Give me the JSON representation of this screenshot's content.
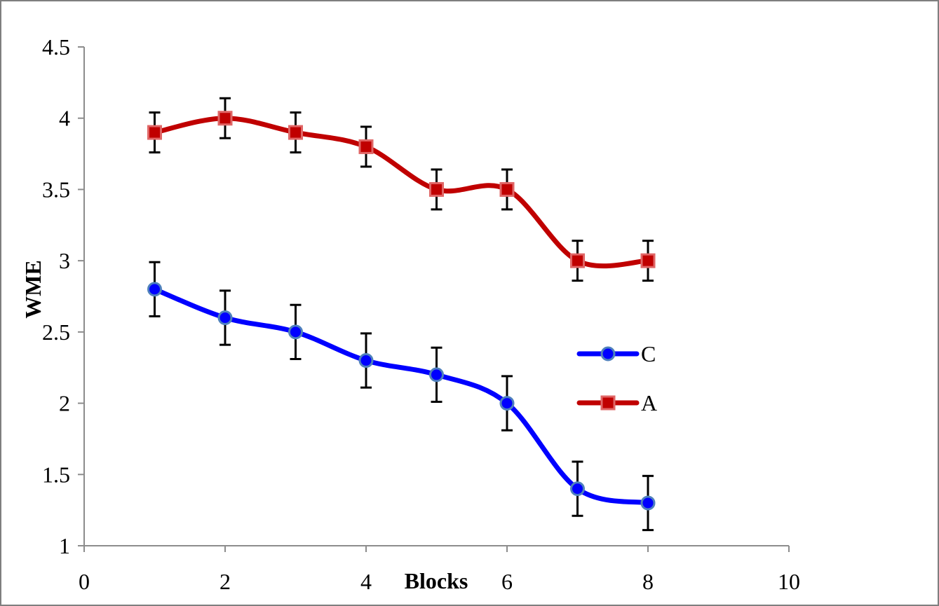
{
  "chart_data": {
    "type": "line",
    "title": "",
    "xlabel": "Blocks",
    "ylabel": "WME",
    "xlim": [
      0,
      10
    ],
    "ylim": [
      1,
      4.5
    ],
    "x_ticks": [
      0,
      2,
      4,
      6,
      8,
      10
    ],
    "y_ticks": [
      1,
      1.5,
      2,
      2.5,
      3,
      3.5,
      4,
      4.5
    ],
    "x_tick_labels": [
      "0",
      "2",
      "4",
      "6",
      "8",
      "10"
    ],
    "y_tick_labels": [
      "1",
      "1.5",
      "2",
      "2.5",
      "3",
      "3.5",
      "4",
      "4.5"
    ],
    "grid": false,
    "smooth": true,
    "legend_position": "right",
    "series": [
      {
        "name": "C",
        "color": "#0000ff",
        "marker": "circle",
        "marker_fill": "#0000ff",
        "marker_edge": "#4f81bd",
        "x": [
          1,
          2,
          3,
          4,
          5,
          6,
          7,
          8
        ],
        "values": [
          2.8,
          2.6,
          2.5,
          2.3,
          2.2,
          2.0,
          1.4,
          1.3
        ],
        "error": [
          0.19,
          0.19,
          0.19,
          0.19,
          0.19,
          0.19,
          0.19,
          0.19
        ]
      },
      {
        "name": "A",
        "color": "#c00000",
        "marker": "square",
        "marker_fill": "#c00000",
        "marker_edge": "#e06666",
        "x": [
          1,
          2,
          3,
          4,
          5,
          6,
          7,
          8
        ],
        "values": [
          3.9,
          4.0,
          3.9,
          3.8,
          3.5,
          3.5,
          3.0,
          3.0
        ],
        "error": [
          0.14,
          0.14,
          0.14,
          0.14,
          0.14,
          0.14,
          0.14,
          0.14
        ]
      }
    ]
  }
}
